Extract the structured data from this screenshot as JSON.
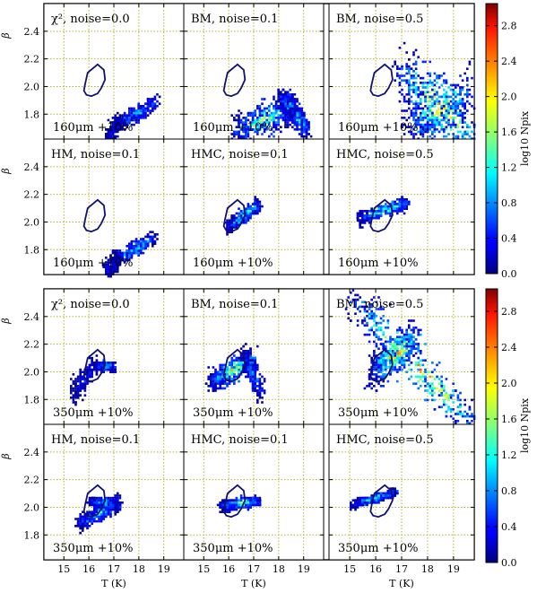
{
  "chart_data": {
    "type": "heatmap",
    "layout": {
      "blocks": 2,
      "rows_per_block": 2,
      "cols": 3
    },
    "xlabel": "T (K)",
    "ylabel": "β",
    "xlim": [
      14.2,
      19.8
    ],
    "ylim": [
      1.62,
      2.6
    ],
    "xticks": [
      "15",
      "16",
      "17",
      "18",
      "19"
    ],
    "xtick_values": [
      15,
      16,
      17,
      18,
      19
    ],
    "yticks": [
      "1.8",
      "2.0",
      "2.2",
      "2.4"
    ],
    "ytick_values": [
      1.8,
      2.0,
      2.2,
      2.4
    ],
    "grid": true,
    "colorbar": {
      "label": "log10 Npix",
      "ticks": [
        "0.0",
        "0.4",
        "0.8",
        "1.2",
        "1.6",
        "2.0",
        "2.4",
        "2.8"
      ],
      "tick_values": [
        0.0,
        0.4,
        0.8,
        1.2,
        1.6,
        2.0,
        2.4,
        2.8
      ],
      "range": [
        0,
        3.05
      ],
      "colormap": "jet"
    },
    "reference_contour": [
      [
        15.85,
        2.02
      ],
      [
        15.95,
        2.1
      ],
      [
        16.35,
        2.16
      ],
      [
        16.6,
        2.12
      ],
      [
        16.65,
        2.05
      ],
      [
        16.5,
        1.99
      ],
      [
        16.35,
        1.95
      ],
      [
        16.1,
        1.93
      ],
      [
        15.9,
        1.94
      ],
      [
        15.8,
        1.97
      ],
      [
        15.85,
        2.02
      ]
    ],
    "panels": [
      {
        "label": "χ², noise=0.0",
        "band": "160μm +10%"
      },
      {
        "label": "BM, noise=0.1",
        "band": "160μm +10%"
      },
      {
        "label": "BM, noise=0.5",
        "band": "160μm +10%"
      },
      {
        "label": "HM, noise=0.1",
        "band": "160μm +10%"
      },
      {
        "label": "HMC, noise=0.1",
        "band": "160μm +10%"
      },
      {
        "label": "HMC, noise=0.5",
        "band": "160μm +10%"
      },
      {
        "label": "χ², noise=0.0",
        "band": "350μm +10%"
      },
      {
        "label": "BM, noise=0.1",
        "band": "350μm +10%"
      },
      {
        "label": "BM, noise=0.5",
        "band": "350μm +10%"
      },
      {
        "label": "HM, noise=0.1",
        "band": "350μm +10%"
      },
      {
        "label": "HMC, noise=0.1",
        "band": "350μm +10%"
      },
      {
        "label": "HMC, noise=0.5",
        "band": "350μm +10%"
      }
    ],
    "distributions": [
      {
        "bands": [
          {
            "x0": 16.9,
            "y0": 1.72,
            "x1": 18.7,
            "y1": 1.89,
            "w": 0.035,
            "peak": 1.3
          },
          {
            "x0": 16.6,
            "y0": 1.62,
            "x1": 17.2,
            "y1": 1.75,
            "w": 0.05,
            "peak": 0.6
          }
        ]
      },
      {
        "bands": [
          {
            "x0": 16.2,
            "y0": 1.68,
            "x1": 18.3,
            "y1": 1.85,
            "w": 0.07,
            "peak": 2.1
          },
          {
            "x0": 18.3,
            "y0": 1.85,
            "x1": 19.1,
            "y1": 1.7,
            "w": 0.06,
            "peak": 1.4
          },
          {
            "x0": 18.0,
            "y0": 1.92,
            "x1": 18.6,
            "y1": 1.86,
            "w": 0.05,
            "peak": 1.5
          }
        ]
      },
      {
        "bands": [
          {
            "x0": 16.9,
            "y0": 2.1,
            "x1": 19.7,
            "y1": 1.65,
            "w": 0.14,
            "peak": 2.9
          },
          {
            "x0": 17.2,
            "y0": 1.72,
            "x1": 19.5,
            "y1": 1.97,
            "w": 0.12,
            "peak": 2.2
          }
        ]
      },
      {
        "bands": [
          {
            "x0": 16.9,
            "y0": 1.72,
            "x1": 18.6,
            "y1": 1.89,
            "w": 0.035,
            "peak": 1.6
          },
          {
            "x0": 16.6,
            "y0": 1.62,
            "x1": 17.1,
            "y1": 1.74,
            "w": 0.05,
            "peak": 0.6
          }
        ]
      },
      {
        "bands": [
          {
            "x0": 15.9,
            "y0": 1.97,
            "x1": 17.2,
            "y1": 2.14,
            "w": 0.035,
            "peak": 1.8
          }
        ]
      },
      {
        "bands": [
          {
            "x0": 15.3,
            "y0": 2.03,
            "x1": 17.2,
            "y1": 2.15,
            "w": 0.03,
            "peak": 1.9
          }
        ]
      },
      {
        "bands": [
          {
            "x0": 15.3,
            "y0": 1.84,
            "x1": 16.2,
            "y1": 2.06,
            "w": 0.06,
            "peak": 0.6
          },
          {
            "x0": 16.2,
            "y0": 2.05,
            "x1": 17.0,
            "y1": 2.05,
            "w": 0.02,
            "peak": 1.5
          }
        ]
      },
      {
        "bands": [
          {
            "x0": 15.2,
            "y0": 1.93,
            "x1": 17.0,
            "y1": 2.1,
            "w": 0.05,
            "peak": 2.4
          },
          {
            "x0": 16.5,
            "y0": 2.13,
            "x1": 17.3,
            "y1": 1.85,
            "w": 0.05,
            "peak": 1.2
          }
        ]
      },
      {
        "bands": [
          {
            "x0": 15.0,
            "y0": 2.55,
            "x1": 19.7,
            "y1": 1.62,
            "w": 0.1,
            "peak": 2.9
          },
          {
            "x0": 15.8,
            "y0": 2.0,
            "x1": 17.5,
            "y1": 2.25,
            "w": 0.08,
            "peak": 2.8
          }
        ]
      },
      {
        "bands": [
          {
            "x0": 15.5,
            "y0": 1.88,
            "x1": 17.2,
            "y1": 2.05,
            "w": 0.04,
            "peak": 1.6
          },
          {
            "x0": 16.0,
            "y0": 2.05,
            "x1": 17.2,
            "y1": 2.02,
            "w": 0.02,
            "peak": 1.8
          }
        ]
      },
      {
        "bands": [
          {
            "x0": 15.6,
            "y0": 2.02,
            "x1": 17.2,
            "y1": 2.05,
            "w": 0.025,
            "peak": 1.9
          }
        ]
      },
      {
        "bands": [
          {
            "x0": 15.0,
            "y0": 2.02,
            "x1": 16.8,
            "y1": 2.12,
            "w": 0.02,
            "peak": 1.7
          }
        ]
      }
    ]
  }
}
